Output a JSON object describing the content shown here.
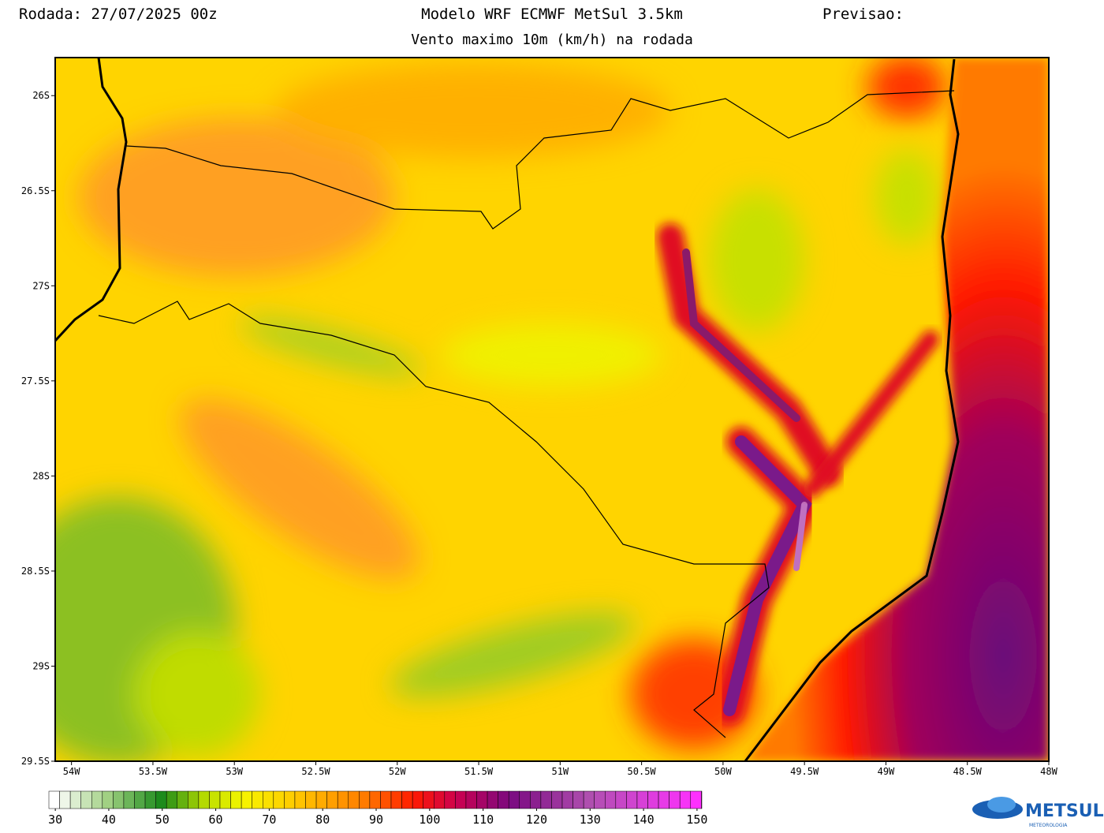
{
  "header": {
    "run": "Rodada: 27/07/2025 00z",
    "title": "Modelo WRF ECMWF MetSul 3.5km",
    "forecast": "Previsao:",
    "subtitle": "Vento maximo 10m (km/h) na rodada"
  },
  "map": {
    "xlim": [
      -54.1,
      -48
    ],
    "ylim": [
      -29.5,
      -25.8
    ],
    "xticks": [
      {
        "value": -54,
        "label": "54W"
      },
      {
        "value": -53.5,
        "label": "53.5W"
      },
      {
        "value": -53,
        "label": "53W"
      },
      {
        "value": -52.5,
        "label": "52.5W"
      },
      {
        "value": -52,
        "label": "52W"
      },
      {
        "value": -51.5,
        "label": "51.5W"
      },
      {
        "value": -51,
        "label": "51W"
      },
      {
        "value": -50.5,
        "label": "50.5W"
      },
      {
        "value": -50,
        "label": "50W"
      },
      {
        "value": -49.5,
        "label": "49.5W"
      },
      {
        "value": -49,
        "label": "49W"
      },
      {
        "value": -48.5,
        "label": "48.5W"
      },
      {
        "value": -48,
        "label": "48W"
      }
    ],
    "yticks": [
      {
        "value": -26,
        "label": "26S"
      },
      {
        "value": -26.5,
        "label": "26.5S"
      },
      {
        "value": -27,
        "label": "27S"
      },
      {
        "value": -27.5,
        "label": "27.5S"
      },
      {
        "value": -28,
        "label": "28S"
      },
      {
        "value": -28.5,
        "label": "28.5S"
      },
      {
        "value": -29,
        "label": "29S"
      },
      {
        "value": -29.5,
        "label": "29.5S"
      }
    ]
  },
  "colorbar": {
    "lim": [
      28.8,
      150.9
    ],
    "ticks": [
      30,
      40,
      50,
      60,
      70,
      80,
      90,
      100,
      110,
      120,
      130,
      140,
      150
    ],
    "stops": [
      {
        "value": 30,
        "color": "#ffffff"
      },
      {
        "value": 40,
        "color": "#9fcf80"
      },
      {
        "value": 50,
        "color": "#1a8a1a"
      },
      {
        "value": 58,
        "color": "#b8dc00"
      },
      {
        "value": 65,
        "color": "#f6f600"
      },
      {
        "value": 75,
        "color": "#ffc800"
      },
      {
        "value": 88,
        "color": "#ff7a00"
      },
      {
        "value": 97,
        "color": "#ff1a00"
      },
      {
        "value": 105,
        "color": "#cc0050"
      },
      {
        "value": 115,
        "color": "#7a0a80"
      },
      {
        "value": 130,
        "color": "#b050b0"
      },
      {
        "value": 150,
        "color": "#ff30ff"
      }
    ]
  },
  "logo": {
    "name": "METSUL",
    "tagline": "METEOROLOGIA"
  }
}
